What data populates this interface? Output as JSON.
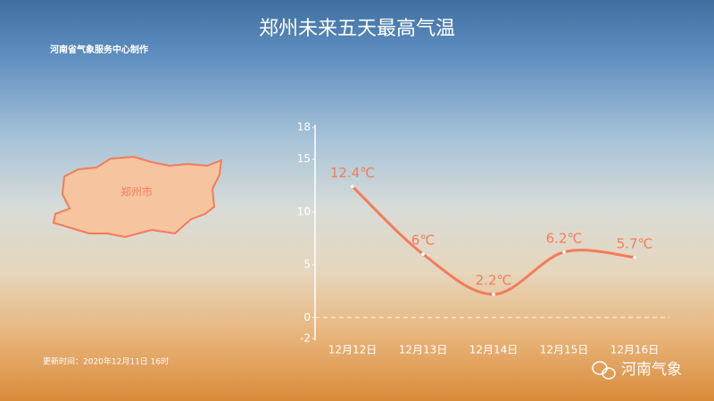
{
  "chart_data": {
    "type": "line",
    "title": "郑州未来五天最高气温",
    "subtitle": "河南省气象服务中心制作",
    "map_label": "郑州市",
    "update_time": "更新时间：2020年12月11日  16时",
    "watermark": "河南气象",
    "categories": [
      "12月12日",
      "12月13日",
      "12月14日",
      "12月15日",
      "12月16日"
    ],
    "values": [
      12.4,
      6,
      2.2,
      6.2,
      5.7
    ],
    "value_labels": [
      "12.4℃",
      "6℃",
      "2.2℃",
      "6.2℃",
      "5.7℃"
    ],
    "color": "#f47c5a",
    "ylim": [
      -2,
      18
    ],
    "yticks": [
      -2,
      0,
      5,
      10,
      15,
      18
    ]
  }
}
